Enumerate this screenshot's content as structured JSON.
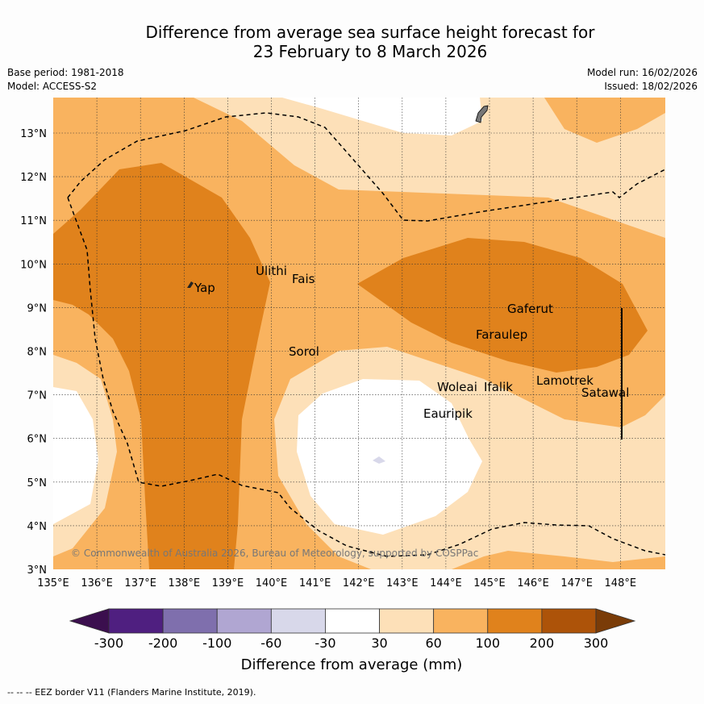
{
  "title_line1": "Difference from average sea surface height forecast for",
  "title_line2": "23 February to 8 March 2026",
  "base_period": "Base period: 1981-2018",
  "model": "Model: ACCESS-S2",
  "model_run": "Model run: 16/02/2026",
  "issued": "Issued: 18/02/2026",
  "copyright": "© Commonwealth of Australia 2026, Bureau of Meteorology, supported by COSPPac",
  "footer_note": "--  --  -- EEZ border V11 (Flanders Marine Institute, 2019).",
  "x_ticks": [
    "135°E",
    "136°E",
    "137°E",
    "138°E",
    "139°E",
    "140°E",
    "141°E",
    "142°E",
    "143°E",
    "144°E",
    "145°E",
    "146°E",
    "147°E",
    "148°E"
  ],
  "y_ticks": [
    "13°N",
    "12°N",
    "11°N",
    "10°N",
    "9°N",
    "8°N",
    "7°N",
    "6°N",
    "5°N",
    "4°N",
    "3°N"
  ],
  "places": [
    {
      "name": "Yap"
    },
    {
      "name": "Ulithi"
    },
    {
      "name": "Fais"
    },
    {
      "name": "Sorol"
    },
    {
      "name": "Gaferut"
    },
    {
      "name": "Faraulep"
    },
    {
      "name": "Woleai"
    },
    {
      "name": "Ifalik"
    },
    {
      "name": "Eauripik"
    },
    {
      "name": "Lamotrek"
    },
    {
      "name": "Satawal"
    }
  ],
  "colorbar": {
    "title": "Difference from average (mm)",
    "tick_labels": [
      "-300",
      "-200",
      "-100",
      "-60",
      "-30",
      "30",
      "60",
      "100",
      "200",
      "300"
    ],
    "colors": [
      "#3b0f4e",
      "#4f1f80",
      "#7f6fad",
      "#b0a6d2",
      "#d8d8ea",
      "#ffffff",
      "#fde0b8",
      "#f9b35f",
      "#e0821c",
      "#ad5309",
      "#7a3c08"
    ]
  }
}
